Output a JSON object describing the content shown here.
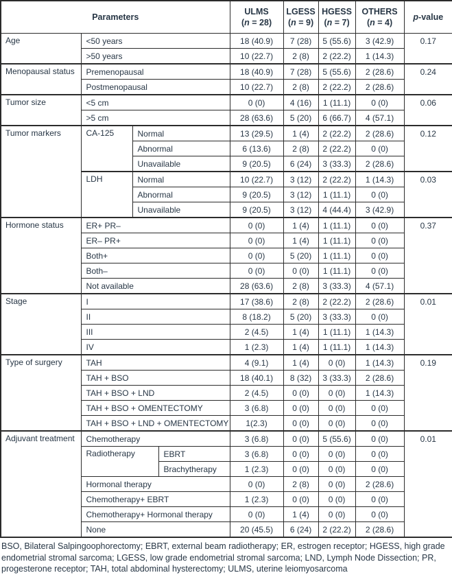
{
  "table": {
    "header": {
      "parameters": "Parameters",
      "cols": [
        {
          "name": "ULMS",
          "n_open": "(",
          "n_sym": "n",
          "n_rest": " = 28)"
        },
        {
          "name": "LGESS",
          "n_open": "(",
          "n_sym": "n",
          "n_rest": " = 9)"
        },
        {
          "name": "HGESS",
          "n_open": "(",
          "n_sym": "n",
          "n_rest": " = 7)"
        },
        {
          "name": "OTHERS",
          "n_open": "(",
          "n_sym": "n",
          "n_rest": " = 4)"
        }
      ],
      "p_italic": "p",
      "p_rest": "-value"
    },
    "rows": [
      {
        "thick": false,
        "cells": [
          {
            "t": "Age",
            "rs": 2,
            "r": "group"
          },
          {
            "t": "<50 years",
            "cs": 3,
            "r": "sub"
          },
          {
            "t": "18 (40.9)"
          },
          {
            "t": "7 (28)"
          },
          {
            "t": "5 (55.6)"
          },
          {
            "t": "3 (42.9)"
          },
          {
            "t": "0.17",
            "rs": 2,
            "r": "p"
          }
        ]
      },
      {
        "thick": false,
        "cells": [
          {
            "t": ">50 years",
            "cs": 3,
            "r": "sub"
          },
          {
            "t": "10 (22.7)"
          },
          {
            "t": "2 (8)"
          },
          {
            "t": "2 (22.2)"
          },
          {
            "t": "1 (14.3)"
          }
        ]
      },
      {
        "thick": true,
        "cells": [
          {
            "t": "Menopausal status",
            "rs": 2,
            "r": "group"
          },
          {
            "t": "Premenopausal",
            "cs": 3,
            "r": "sub"
          },
          {
            "t": "18 (40.9)"
          },
          {
            "t": "7 (28)"
          },
          {
            "t": "5 (55.6)"
          },
          {
            "t": "2 (28.6)"
          },
          {
            "t": "0.24",
            "rs": 2,
            "r": "p"
          }
        ]
      },
      {
        "thick": false,
        "cells": [
          {
            "t": "Postmenopausal",
            "cs": 3,
            "r": "sub"
          },
          {
            "t": "10 (22.7)"
          },
          {
            "t": "2 (8)"
          },
          {
            "t": "2 (22.2)"
          },
          {
            "t": "2 (28.6)"
          }
        ]
      },
      {
        "thick": true,
        "cells": [
          {
            "t": "Tumor size",
            "rs": 2,
            "r": "group"
          },
          {
            "t": "<5 cm",
            "cs": 3,
            "r": "sub"
          },
          {
            "t": "0 (0)"
          },
          {
            "t": "4 (16)"
          },
          {
            "t": "1 (11.1)"
          },
          {
            "t": "0 (0)"
          },
          {
            "t": "0.06",
            "rs": 2,
            "r": "p"
          }
        ]
      },
      {
        "thick": false,
        "cells": [
          {
            "t": ">5 cm",
            "cs": 3,
            "r": "sub"
          },
          {
            "t": "28 (63.6)"
          },
          {
            "t": "5 (20)"
          },
          {
            "t": "6 (66.7)"
          },
          {
            "t": "4 (57.1)"
          }
        ]
      },
      {
        "thick": true,
        "cells": [
          {
            "t": "Tumor markers",
            "rs": 6,
            "r": "group"
          },
          {
            "t": "CA-125",
            "rs": 3,
            "r": "subspan"
          },
          {
            "t": "Normal",
            "cs": 2,
            "r": "sub"
          },
          {
            "t": "13 (29.5)"
          },
          {
            "t": "1 (4)"
          },
          {
            "t": "2 (22.2)"
          },
          {
            "t": "2 (28.6)"
          },
          {
            "t": "0.12",
            "rs": 3,
            "r": "p"
          }
        ]
      },
      {
        "thick": false,
        "cells": [
          {
            "t": "Abnormal",
            "cs": 2,
            "r": "sub"
          },
          {
            "t": "6 (13.6)"
          },
          {
            "t": "2 (8)"
          },
          {
            "t": "2 (22.2)"
          },
          {
            "t": "0 (0)"
          }
        ]
      },
      {
        "thick": false,
        "cells": [
          {
            "t": "Unavailable",
            "cs": 2,
            "r": "sub"
          },
          {
            "t": "9 (20.5)"
          },
          {
            "t": "6 (24)"
          },
          {
            "t": "3 (33.3)"
          },
          {
            "t": "2 (28.6)"
          }
        ]
      },
      {
        "thick": true,
        "cells": [
          {
            "t": "LDH",
            "rs": 3,
            "r": "subspan"
          },
          {
            "t": "Normal",
            "cs": 2,
            "r": "sub"
          },
          {
            "t": "10 (22.7)"
          },
          {
            "t": "3 (12)"
          },
          {
            "t": "2 (22.2)"
          },
          {
            "t": "1 (14.3)"
          },
          {
            "t": "0.03",
            "rs": 3,
            "r": "p"
          }
        ]
      },
      {
        "thick": false,
        "cells": [
          {
            "t": "Abnormal",
            "cs": 2,
            "r": "sub"
          },
          {
            "t": "9 (20.5)"
          },
          {
            "t": "3 (12)"
          },
          {
            "t": "1 (11.1)"
          },
          {
            "t": "0 (0)"
          }
        ]
      },
      {
        "thick": false,
        "cells": [
          {
            "t": "Unavailable",
            "cs": 2,
            "r": "sub"
          },
          {
            "t": "9 (20.5)"
          },
          {
            "t": "3 (12)"
          },
          {
            "t": "4 (44.4)"
          },
          {
            "t": "3 (42.9)"
          }
        ]
      },
      {
        "thick": true,
        "cells": [
          {
            "t": "Hormone status",
            "rs": 5,
            "r": "group"
          },
          {
            "t": "ER+ PR–",
            "cs": 3,
            "r": "sub"
          },
          {
            "t": "0 (0)"
          },
          {
            "t": "1 (4)"
          },
          {
            "t": "1 (11.1)"
          },
          {
            "t": "0 (0)"
          },
          {
            "t": "0.37",
            "rs": 5,
            "r": "p"
          }
        ]
      },
      {
        "thick": false,
        "cells": [
          {
            "t": "ER– PR+",
            "cs": 3,
            "r": "sub"
          },
          {
            "t": "0 (0)"
          },
          {
            "t": "1 (4)"
          },
          {
            "t": "1 (11.1)"
          },
          {
            "t": "0 (0)"
          }
        ]
      },
      {
        "thick": false,
        "cells": [
          {
            "t": "Both+",
            "cs": 3,
            "r": "sub"
          },
          {
            "t": "0 (0)"
          },
          {
            "t": "5 (20)"
          },
          {
            "t": "1 (11.1)"
          },
          {
            "t": "0 (0)"
          }
        ]
      },
      {
        "thick": false,
        "cells": [
          {
            "t": "Both–",
            "cs": 3,
            "r": "sub"
          },
          {
            "t": "0 (0)"
          },
          {
            "t": "0 (0)"
          },
          {
            "t": "1 (11.1)"
          },
          {
            "t": "0 (0)"
          }
        ]
      },
      {
        "thick": false,
        "cells": [
          {
            "t": "Not available",
            "cs": 3,
            "r": "sub"
          },
          {
            "t": "28 (63.6)"
          },
          {
            "t": "2 (8)"
          },
          {
            "t": "3 (33.3)"
          },
          {
            "t": "4 (57.1)"
          }
        ]
      },
      {
        "thick": true,
        "cells": [
          {
            "t": "Stage",
            "rs": 4,
            "r": "group"
          },
          {
            "t": "I",
            "cs": 3,
            "r": "sub"
          },
          {
            "t": "17 (38.6)"
          },
          {
            "t": "2 (8)"
          },
          {
            "t": "2 (22.2)"
          },
          {
            "t": "2 (28.6)"
          },
          {
            "t": "0.01",
            "rs": 4,
            "r": "p"
          }
        ]
      },
      {
        "thick": false,
        "cells": [
          {
            "t": "II",
            "cs": 3,
            "r": "sub"
          },
          {
            "t": "8 (18.2)"
          },
          {
            "t": "5 (20)"
          },
          {
            "t": "3 (33.3)"
          },
          {
            "t": "0 (0)"
          }
        ]
      },
      {
        "thick": false,
        "cells": [
          {
            "t": "III",
            "cs": 3,
            "r": "sub"
          },
          {
            "t": "2 (4.5)"
          },
          {
            "t": "1 (4)"
          },
          {
            "t": "1 (11.1)"
          },
          {
            "t": "1 (14.3)"
          }
        ]
      },
      {
        "thick": false,
        "cells": [
          {
            "t": "IV",
            "cs": 3,
            "r": "sub"
          },
          {
            "t": "1 (2.3)"
          },
          {
            "t": "1 (4)"
          },
          {
            "t": "1 (11.1)"
          },
          {
            "t": "1 (14.3)"
          }
        ]
      },
      {
        "thick": true,
        "cells": [
          {
            "t": "Type of surgery",
            "rs": 5,
            "r": "group"
          },
          {
            "t": "TAH",
            "cs": 3,
            "r": "sub"
          },
          {
            "t": "4 (9.1)"
          },
          {
            "t": "1 (4)"
          },
          {
            "t": "0 (0)"
          },
          {
            "t": "1 (14.3)"
          },
          {
            "t": "0.19",
            "rs": 5,
            "r": "p"
          }
        ]
      },
      {
        "thick": false,
        "cells": [
          {
            "t": "TAH + BSO",
            "cs": 3,
            "r": "sub"
          },
          {
            "t": "18 (40.1)"
          },
          {
            "t": "8 (32)"
          },
          {
            "t": "3 (33.3)"
          },
          {
            "t": "2 (28.6)"
          }
        ]
      },
      {
        "thick": false,
        "cells": [
          {
            "t": "TAH + BSO + LND",
            "cs": 3,
            "r": "sub"
          },
          {
            "t": "2 (4.5)"
          },
          {
            "t": "0 (0)"
          },
          {
            "t": "0 (0)"
          },
          {
            "t": "1 (14.3)"
          }
        ]
      },
      {
        "thick": false,
        "cells": [
          {
            "t": "TAH + BSO + OMENTECTOMY",
            "cs": 3,
            "r": "sub"
          },
          {
            "t": "3 (6.8)"
          },
          {
            "t": "0 (0)"
          },
          {
            "t": "0 (0)"
          },
          {
            "t": "0 (0)"
          }
        ]
      },
      {
        "thick": false,
        "cells": [
          {
            "t": "TAH + BSO + LND + OMENTECTOMY",
            "cs": 3,
            "r": "sub"
          },
          {
            "t": "1(2.3)"
          },
          {
            "t": "0 (0)"
          },
          {
            "t": "0 (0)"
          },
          {
            "t": "0 (0)"
          }
        ]
      },
      {
        "thick": true,
        "cells": [
          {
            "t": "Adjuvant treatment",
            "rs": 7,
            "r": "group"
          },
          {
            "t": "Chemotherapy",
            "cs": 3,
            "r": "sub"
          },
          {
            "t": "3 (6.8)"
          },
          {
            "t": "0 (0)"
          },
          {
            "t": "5 (55.6)"
          },
          {
            "t": "0 (0)"
          },
          {
            "t": "0.01",
            "rs": 7,
            "r": "p"
          }
        ]
      },
      {
        "thick": false,
        "cells": [
          {
            "t": "Radiotherapy",
            "cs": 2,
            "rs": 2,
            "r": "subspan"
          },
          {
            "t": "EBRT",
            "r": "sub"
          },
          {
            "t": "3 (6.8)"
          },
          {
            "t": "0 (0)"
          },
          {
            "t": "0 (0)"
          },
          {
            "t": "0 (0)"
          }
        ]
      },
      {
        "thick": false,
        "cells": [
          {
            "t": "Brachytherapy",
            "r": "sub"
          },
          {
            "t": "1 (2.3)"
          },
          {
            "t": "0 (0)"
          },
          {
            "t": "0 (0)"
          },
          {
            "t": "0 (0)"
          }
        ]
      },
      {
        "thick": false,
        "cells": [
          {
            "t": "Hormonal therapy",
            "cs": 3,
            "r": "sub"
          },
          {
            "t": "0 (0)"
          },
          {
            "t": "2 (8)"
          },
          {
            "t": "0 (0)"
          },
          {
            "t": "2 (28.6)"
          }
        ]
      },
      {
        "thick": false,
        "cells": [
          {
            "t": "Chemotherapy+ EBRT",
            "cs": 3,
            "r": "sub"
          },
          {
            "t": "1 (2.3)"
          },
          {
            "t": "0 (0)"
          },
          {
            "t": "0 (0)"
          },
          {
            "t": "0 (0)"
          }
        ]
      },
      {
        "thick": false,
        "cells": [
          {
            "t": "Chemotherapy+ Hormonal therapy",
            "cs": 3,
            "r": "sub"
          },
          {
            "t": "0 (0)"
          },
          {
            "t": "1 (4)"
          },
          {
            "t": "0 (0)"
          },
          {
            "t": "0 (0)"
          }
        ]
      },
      {
        "thick": false,
        "cells": [
          {
            "t": "None",
            "cs": 3,
            "r": "sub"
          },
          {
            "t": "20 (45.5)"
          },
          {
            "t": "6 (24)"
          },
          {
            "t": "2 (22.2)"
          },
          {
            "t": "2 (28.6)"
          }
        ]
      }
    ]
  },
  "footnote": "BSO, Bilateral Salpingoophorectomy; EBRT, external beam radiotherapy; ER, estrogen receptor; HGESS, high grade endometrial stromal sarcoma; LGESS, low grade endometrial stromal sarcoma; LND, Lymph Node Dissection; PR, progesterone receptor; TAH, total abdominal hysterectomy; ULMS, uterine leiomyosarcoma",
  "colors": {
    "text": "#273645",
    "border": "#2b2b2b",
    "background": "#ffffff"
  }
}
